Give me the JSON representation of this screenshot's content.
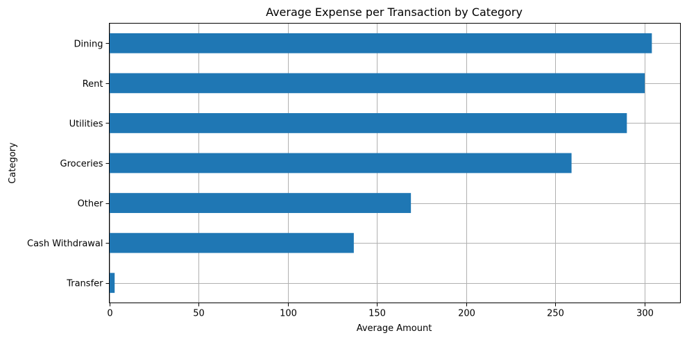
{
  "chart_data": {
    "type": "bar",
    "orientation": "horizontal",
    "title": "Average Expense per Transaction by Category",
    "xlabel": "Average Amount",
    "ylabel": "Category",
    "categories": [
      "Dining",
      "Rent",
      "Utilities",
      "Groceries",
      "Other",
      "Cash Withdrawal",
      "Transfer"
    ],
    "values": [
      304,
      300,
      290,
      259,
      169,
      137,
      3
    ],
    "xlim": [
      0,
      320
    ],
    "xticks": [
      0,
      50,
      100,
      150,
      200,
      250,
      300
    ],
    "grid": true,
    "bar_color": "#1f77b4"
  }
}
